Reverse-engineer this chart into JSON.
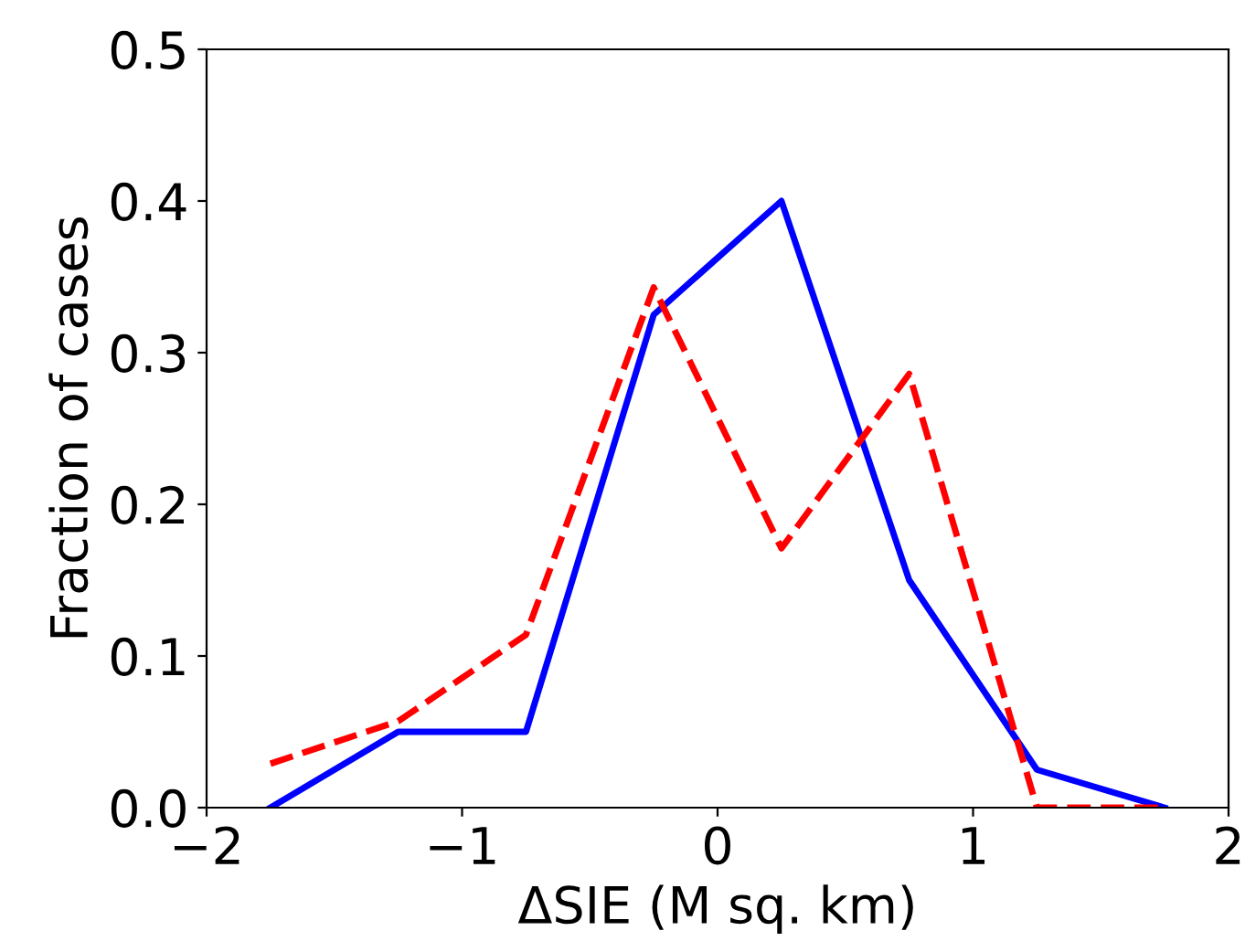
{
  "chart_data": {
    "type": "line",
    "xlabel": "ΔSIE (M sq. km)",
    "ylabel": "Fraction of cases",
    "x": [
      -1.75,
      -1.25,
      -0.75,
      -0.25,
      0.25,
      0.75,
      1.25,
      1.75
    ],
    "series": [
      {
        "color": "#0000ff",
        "line_style": "solid",
        "values": [
          0,
          0.05,
          0.05,
          0.325,
          0.4,
          0.15,
          0.025,
          0
        ]
      },
      {
        "color": "#ff0000",
        "line_style": "dashed",
        "values": [
          0.029,
          0.057,
          0.114,
          0.343,
          0.171,
          0.286,
          0,
          0
        ]
      }
    ],
    "xlim": [
      -2,
      2
    ],
    "ylim": [
      0,
      0.5
    ],
    "xticks": [
      {
        "value": -2,
        "label": "−2"
      },
      {
        "value": -1,
        "label": "−1"
      },
      0,
      1,
      2
    ],
    "yticks": [
      {
        "value": 0,
        "label": "0.0"
      },
      0.1,
      0.2,
      0.3,
      0.4,
      0.5
    ],
    "grid": false,
    "marker": "none"
  }
}
